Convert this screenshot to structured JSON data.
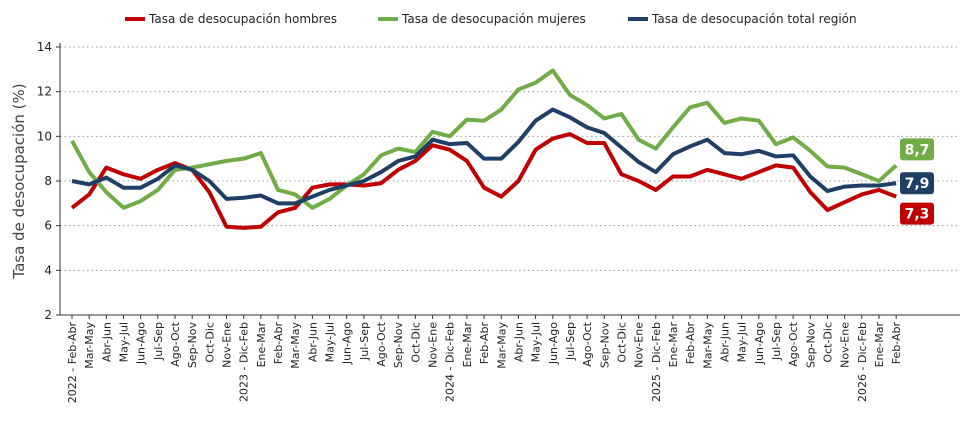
{
  "chart_data": {
    "type": "line",
    "ylabel": "Tasa de desocupación (%)",
    "categories": [
      "2022 - Feb-Abr",
      "Mar-May",
      "Abr-Jun",
      "May-Jul",
      "Jun-Ago",
      "Jul-Sep",
      "Ago-Oct",
      "Sep-Nov",
      "Oct-Dic",
      "Nov-Ene",
      "2023 - Dic-Feb",
      "Ene-Mar",
      "Feb-Abr",
      "Mar-May",
      "Abr-Jun",
      "May-Jul",
      "Jun-Ago",
      "Jul-Sep",
      "Ago-Oct",
      "Sep-Nov",
      "Oct-Dic",
      "Nov-Ene",
      "2024 - Dic-Feb",
      "Ene-Mar",
      "Feb-Abr",
      "Mar-May",
      "Abr-Jun",
      "May-Jul",
      "Jun-Ago",
      "Jul-Sep",
      "Ago-Oct",
      "Sep-Nov",
      "Oct-Dic",
      "Nov-Ene",
      "2025 - Dic-Feb",
      "Ene-Mar",
      "Feb-Abr",
      "Mar-May",
      "Abr-Jun",
      "May-Jul",
      "Jun-Ago",
      "Jul-Sep",
      "Ago-Oct",
      "Sep-Nov",
      "Oct-Dic",
      "Nov-Ene",
      "2026 - Dic-Feb",
      "Ene-Mar",
      "Feb-Abr"
    ],
    "series": [
      {
        "name": "Tasa de desocupación hombres",
        "color": "#c00000",
        "values": [
          6.8,
          7.4,
          8.6,
          8.3,
          8.1,
          8.5,
          8.8,
          8.5,
          7.5,
          5.95,
          5.9,
          5.95,
          6.6,
          6.8,
          7.7,
          7.85,
          7.85,
          7.8,
          7.9,
          8.5,
          8.9,
          9.6,
          9.4,
          8.9,
          7.7,
          7.3,
          8.0,
          9.4,
          9.9,
          10.1,
          9.7,
          9.7,
          8.3,
          8.0,
          7.6,
          8.2,
          8.2,
          8.5,
          8.3,
          8.1,
          8.4,
          8.7,
          8.6,
          7.5,
          6.7,
          7.05,
          7.4,
          7.6,
          7.3
        ],
        "value_labels": [
          null,
          null,
          null,
          null,
          null,
          null,
          null,
          null,
          null,
          null,
          null,
          null,
          null,
          null,
          null,
          null,
          null,
          null,
          null,
          null,
          null,
          null,
          null,
          null,
          null,
          null,
          null,
          null,
          null,
          null,
          null,
          null,
          null,
          null,
          null,
          null,
          null,
          null,
          null,
          null,
          null,
          null,
          null,
          null,
          null,
          null,
          null,
          null,
          "7,3"
        ]
      },
      {
        "name": "Tasa de desocupación mujeres",
        "color": "#70ad47",
        "values": [
          9.8,
          8.4,
          7.5,
          6.8,
          7.1,
          7.6,
          8.5,
          8.6,
          8.75,
          8.9,
          9.0,
          9.25,
          7.6,
          7.4,
          6.8,
          7.2,
          7.8,
          8.3,
          9.15,
          9.45,
          9.3,
          10.2,
          10.0,
          10.75,
          10.7,
          11.2,
          12.1,
          12.4,
          12.95,
          11.85,
          11.4,
          10.8,
          11.0,
          9.85,
          9.45,
          10.4,
          11.3,
          11.5,
          10.6,
          10.8,
          10.7,
          9.65,
          9.95,
          9.35,
          8.65,
          8.6,
          8.3,
          8.0,
          8.7
        ],
        "value_labels": [
          null,
          null,
          null,
          null,
          null,
          null,
          null,
          null,
          null,
          null,
          null,
          null,
          null,
          null,
          null,
          null,
          null,
          null,
          null,
          null,
          null,
          null,
          null,
          null,
          null,
          null,
          null,
          null,
          null,
          null,
          null,
          null,
          null,
          null,
          null,
          null,
          null,
          null,
          null,
          null,
          null,
          null,
          null,
          null,
          null,
          null,
          null,
          null,
          "8,7"
        ]
      },
      {
        "name": "Tasa de desocupación total región",
        "color": "#1f3f66",
        "values": [
          8.0,
          7.85,
          8.15,
          7.7,
          7.7,
          8.1,
          8.7,
          8.5,
          8.0,
          7.2,
          7.25,
          7.35,
          7.0,
          7.0,
          7.3,
          7.6,
          7.8,
          8.0,
          8.4,
          8.9,
          9.1,
          9.85,
          9.65,
          9.7,
          9.0,
          9.0,
          9.75,
          10.7,
          11.2,
          10.85,
          10.4,
          10.15,
          9.5,
          8.85,
          8.4,
          9.2,
          9.55,
          9.85,
          9.25,
          9.2,
          9.35,
          9.1,
          9.15,
          8.2,
          7.55,
          7.75,
          7.8,
          7.8,
          7.9
        ],
        "value_labels": [
          null,
          null,
          null,
          null,
          null,
          null,
          null,
          null,
          null,
          null,
          null,
          null,
          null,
          null,
          null,
          null,
          null,
          null,
          null,
          null,
          null,
          null,
          null,
          null,
          null,
          null,
          null,
          null,
          null,
          null,
          null,
          null,
          null,
          null,
          null,
          null,
          null,
          null,
          null,
          null,
          null,
          null,
          null,
          null,
          null,
          null,
          null,
          null,
          "7,9"
        ]
      }
    ],
    "ylim": [
      2,
      14
    ],
    "yticks": [
      2,
      4,
      6,
      8,
      10,
      12,
      14
    ],
    "grid": true,
    "legend": "top"
  }
}
